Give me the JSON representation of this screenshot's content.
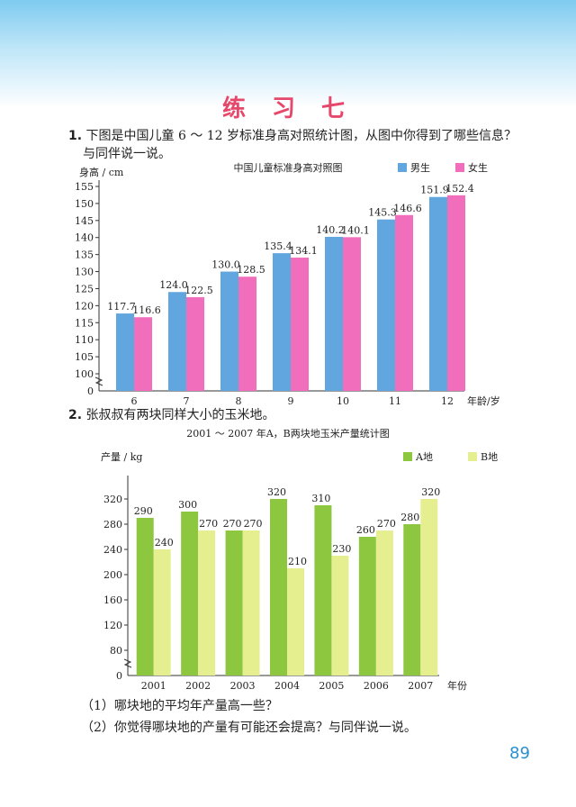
{
  "page": {
    "title": "练 习 七",
    "page_number": "89"
  },
  "question1": {
    "number": "1.",
    "text_line1": "下图是中国儿童 6 ～ 12 岁标准身高对照统计图，从图中你得到了哪些信息？",
    "text_line2": "与同伴说一说。"
  },
  "question2": {
    "number": "2.",
    "text": "张叔叔有两块同样大小的玉米地。",
    "sub1": "（1）哪块地的平均年产量高一些？",
    "sub2": "（2）你觉得哪块地的产量有可能还会提高？与同伴说一说。"
  },
  "chart_data": [
    {
      "type": "bar",
      "title": "中国儿童标准身高对照图",
      "ylabel": "身高 / cm",
      "xlabel": "年龄/岁",
      "categories": [
        "6",
        "7",
        "8",
        "9",
        "10",
        "11",
        "12"
      ],
      "series": [
        {
          "name": "男生",
          "color": "#62a6df",
          "values": [
            117.7,
            124.0,
            130.0,
            135.4,
            140.2,
            145.3,
            151.9
          ],
          "labels": [
            "117.7",
            "124.0",
            "130.0",
            "135.4",
            "140.2",
            "145.3",
            "151.9"
          ]
        },
        {
          "name": "女生",
          "color": "#f06ebb",
          "values": [
            116.6,
            122.5,
            128.5,
            134.1,
            140.1,
            146.6,
            152.4
          ],
          "labels": [
            "116.6",
            "122.5",
            "128.5",
            "134.1",
            "140.1",
            "146.6",
            "152.4"
          ]
        }
      ],
      "yticks": [
        0,
        100,
        105,
        110,
        115,
        120,
        125,
        130,
        135,
        140,
        145,
        150,
        155
      ],
      "ylim": [
        100,
        157
      ],
      "axis_break": true,
      "legend": "top-right",
      "grid": false
    },
    {
      "type": "bar",
      "title": "2001 ～ 2007 年A，B两块地玉米产量统计图",
      "ylabel": "产量 / kg",
      "xlabel": "年份",
      "categories": [
        "2001",
        "2002",
        "2003",
        "2004",
        "2005",
        "2006",
        "2007"
      ],
      "series": [
        {
          "name": "A地",
          "color": "#8dc63f",
          "values": [
            290,
            300,
            270,
            320,
            310,
            260,
            280
          ]
        },
        {
          "name": "B地",
          "color": "#e6ef8f",
          "values": [
            240,
            270,
            270,
            210,
            230,
            270,
            320
          ]
        }
      ],
      "yticks": [
        0,
        80,
        120,
        160,
        200,
        240,
        280,
        320
      ],
      "ylim": [
        40,
        340
      ],
      "axis_break": true,
      "legend": "top-right",
      "grid": false
    }
  ]
}
